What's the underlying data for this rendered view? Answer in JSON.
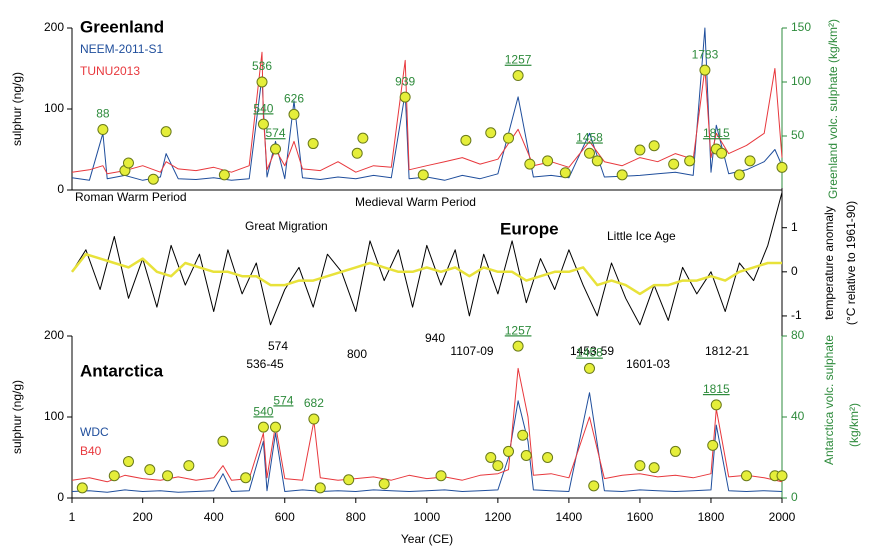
{
  "chart_data": [
    {
      "type": "line",
      "title": "Greenland",
      "ylabel": "sulphur (ng/g)",
      "y2label": [
        "Greenland volc. sulphate (kg/km²)"
      ],
      "ylim": [
        0,
        200
      ],
      "yticks": [
        0,
        100,
        200
      ],
      "y2lim": [
        0,
        150
      ],
      "y2ticks": [
        50,
        100,
        150
      ],
      "y2color": "#2e8b3c",
      "x": [
        1,
        50,
        88,
        100,
        150,
        200,
        250,
        266,
        300,
        350,
        400,
        450,
        500,
        536,
        540,
        550,
        574,
        600,
        626,
        650,
        700,
        750,
        800,
        850,
        900,
        939,
        950,
        1000,
        1050,
        1100,
        1150,
        1200,
        1257,
        1300,
        1350,
        1400,
        1458,
        1500,
        1550,
        1600,
        1650,
        1700,
        1750,
        1783,
        1800,
        1815,
        1850,
        1900,
        1950,
        1980,
        2000
      ],
      "series": [
        {
          "name": "NEEM-2011-S1",
          "color": "#1f4e9c",
          "values": [
            15,
            12,
            70,
            14,
            18,
            12,
            16,
            45,
            14,
            13,
            15,
            12,
            14,
            140,
            100,
            16,
            60,
            14,
            110,
            15,
            13,
            16,
            14,
            18,
            15,
            120,
            14,
            16,
            12,
            18,
            14,
            20,
            115,
            16,
            18,
            15,
            70,
            16,
            17,
            18,
            20,
            22,
            18,
            200,
            22,
            80,
            20,
            25,
            35,
            50,
            30
          ]
        },
        {
          "name": "TUNU2013",
          "color": "#e8383d",
          "values": [
            22,
            25,
            30,
            20,
            24,
            30,
            22,
            35,
            26,
            24,
            28,
            22,
            30,
            170,
            90,
            25,
            50,
            30,
            60,
            26,
            24,
            35,
            22,
            30,
            28,
            160,
            25,
            30,
            35,
            40,
            32,
            38,
            75,
            30,
            35,
            28,
            60,
            35,
            30,
            40,
            35,
            45,
            38,
            150,
            40,
            70,
            45,
            55,
            70,
            150,
            40
          ]
        }
      ],
      "markers": {
        "axis": "y2",
        "color": "#e5ee3a",
        "x": [
          88,
          150,
          160,
          230,
          266,
          430,
          536,
          540,
          574,
          626,
          680,
          804,
          820,
          939,
          990,
          1110,
          1180,
          1230,
          1257,
          1290,
          1340,
          1390,
          1458,
          1480,
          1550,
          1600,
          1640,
          1695,
          1740,
          1783,
          1815,
          1830,
          1880,
          1910,
          2000
        ],
        "values": [
          56,
          18,
          25,
          10,
          54,
          14,
          100,
          61,
          38,
          70,
          43,
          34,
          48,
          86,
          14,
          46,
          53,
          48,
          106,
          24,
          27,
          16,
          34,
          27,
          14,
          37,
          41,
          24,
          27,
          111,
          38,
          34,
          14,
          27,
          21
        ],
        "labels": [
          {
            "text": "88",
            "underline": false
          },
          null,
          null,
          null,
          null,
          null,
          {
            "text": "536",
            "underline": false
          },
          {
            "text": "540",
            "underline": true
          },
          {
            "text": "574",
            "underline": true
          },
          {
            "text": "626",
            "underline": false
          },
          null,
          null,
          null,
          {
            "text": "939",
            "underline": false
          },
          null,
          null,
          null,
          null,
          {
            "text": "1257",
            "underline": true
          },
          null,
          null,
          null,
          {
            "text": "1458",
            "underline": true
          },
          null,
          null,
          null,
          null,
          null,
          null,
          {
            "text": "1783",
            "underline": false
          },
          {
            "text": "1815",
            "underline": true
          },
          null,
          null,
          null,
          null
        ]
      }
    },
    {
      "type": "line",
      "title": "Europe",
      "y2label": [
        "temperature anomaly",
        "(°C relative to 1961-90)"
      ],
      "y2lim": [
        -1.5,
        1.9
      ],
      "y2ticks": [
        -1,
        0,
        1
      ],
      "y2color": "#000000",
      "annotations": [
        "Roman Warm Period",
        "Medieval Warm Period",
        "Great Migration",
        "Little Ice Age",
        "574",
        "536-45",
        "800",
        "940",
        "1107-09",
        "1453-59",
        "1601-03",
        "1812-21"
      ],
      "x": [
        1,
        40,
        80,
        120,
        160,
        200,
        240,
        280,
        320,
        360,
        400,
        440,
        480,
        520,
        560,
        600,
        640,
        680,
        720,
        760,
        800,
        840,
        880,
        920,
        960,
        1000,
        1040,
        1080,
        1120,
        1160,
        1200,
        1240,
        1280,
        1320,
        1360,
        1400,
        1440,
        1480,
        1520,
        1560,
        1600,
        1640,
        1680,
        1720,
        1760,
        1800,
        1840,
        1880,
        1920,
        1960,
        2000
      ],
      "series": [
        {
          "color": "#000000",
          "axis": "y2",
          "values": [
            0.0,
            0.5,
            -0.4,
            0.8,
            -0.6,
            0.3,
            -0.8,
            0.6,
            -0.3,
            0.4,
            -0.9,
            0.5,
            -0.5,
            0.2,
            -1.2,
            -0.4,
            0.1,
            -0.8,
            0.4,
            0.0,
            -0.9,
            0.7,
            -0.2,
            0.5,
            -0.8,
            0.6,
            -0.3,
            0.5,
            -1.0,
            0.4,
            -0.5,
            0.7,
            -0.7,
            0.3,
            -0.4,
            0.5,
            -0.3,
            -1.0,
            0.2,
            -0.6,
            -1.2,
            -0.3,
            -1.1,
            0.1,
            -0.5,
            0.0,
            -0.9,
            0.2,
            -0.2,
            0.6,
            1.8
          ]
        },
        {
          "color": "#e8e23a",
          "axis": "y2",
          "values": [
            0.0,
            0.4,
            0.3,
            0.2,
            0.1,
            0.3,
            0.0,
            -0.1,
            0.2,
            0.1,
            0.0,
            0.0,
            -0.1,
            -0.1,
            -0.3,
            -0.3,
            -0.2,
            -0.2,
            -0.1,
            0.0,
            0.1,
            0.2,
            0.1,
            0.0,
            0.0,
            0.1,
            0.0,
            0.1,
            -0.1,
            0.1,
            0.0,
            0.0,
            -0.2,
            -0.1,
            0.0,
            0.0,
            0.1,
            -0.3,
            -0.2,
            -0.3,
            -0.5,
            -0.3,
            -0.3,
            -0.2,
            -0.2,
            -0.1,
            -0.2,
            0.0,
            0.1,
            0.2,
            0.2
          ]
        }
      ]
    },
    {
      "type": "line",
      "title": "Antarctica",
      "ylabel": "sulphur (ng/g)",
      "y2label": [
        "Antarctica volc. sulphate",
        "(kg/km²)"
      ],
      "xlabel": "Year (CE)",
      "xlim": [
        1,
        2000
      ],
      "xticks": [
        1,
        200,
        400,
        600,
        800,
        1000,
        1200,
        1400,
        1600,
        1800,
        2000
      ],
      "ylim": [
        0,
        200
      ],
      "yticks": [
        0,
        100,
        200
      ],
      "y2lim": [
        0,
        80
      ],
      "y2ticks": [
        0,
        40,
        80
      ],
      "y2color": "#2e8b3c",
      "x": [
        1,
        50,
        100,
        150,
        200,
        250,
        300,
        350,
        400,
        426,
        450,
        500,
        540,
        550,
        574,
        600,
        650,
        682,
        700,
        750,
        800,
        850,
        900,
        950,
        1000,
        1050,
        1100,
        1150,
        1200,
        1230,
        1257,
        1285,
        1300,
        1350,
        1400,
        1458,
        1500,
        1550,
        1600,
        1650,
        1700,
        1750,
        1800,
        1815,
        1850,
        1900,
        1950,
        2000
      ],
      "series": [
        {
          "name": "WDC",
          "color": "#1f4e9c",
          "values": [
            8,
            9,
            7,
            10,
            8,
            9,
            7,
            8,
            9,
            30,
            8,
            9,
            70,
            9,
            80,
            8,
            10,
            9,
            8,
            9,
            8,
            10,
            9,
            8,
            9,
            10,
            8,
            9,
            10,
            50,
            120,
            70,
            10,
            9,
            8,
            130,
            9,
            8,
            10,
            9,
            8,
            9,
            10,
            90,
            9,
            8,
            9,
            8
          ]
        },
        {
          "name": "B40",
          "color": "#e8383d",
          "values": [
            22,
            25,
            20,
            28,
            24,
            22,
            26,
            22,
            25,
            40,
            22,
            24,
            80,
            25,
            90,
            24,
            22,
            95,
            25,
            22,
            24,
            26,
            22,
            28,
            24,
            26,
            22,
            28,
            30,
            35,
            160,
            100,
            28,
            30,
            25,
            100,
            24,
            28,
            30,
            26,
            28,
            25,
            30,
            110,
            26,
            28,
            25,
            20
          ]
        }
      ],
      "markers": {
        "axis": "y2",
        "color": "#e5ee3a",
        "x": [
          30,
          120,
          160,
          220,
          270,
          330,
          426,
          490,
          540,
          574,
          682,
          700,
          780,
          880,
          1040,
          1180,
          1200,
          1230,
          1257,
          1270,
          1280,
          1340,
          1458,
          1470,
          1600,
          1640,
          1700,
          1805,
          1815,
          1900,
          1980,
          2000
        ],
        "values": [
          5,
          11,
          18,
          14,
          11,
          16,
          28,
          10,
          35,
          35,
          39,
          5,
          9,
          7,
          11,
          20,
          16,
          23,
          75,
          31,
          21,
          20,
          64,
          6,
          16,
          15,
          23,
          26,
          46,
          11,
          11,
          11
        ],
        "labels": [
          null,
          null,
          null,
          null,
          null,
          null,
          null,
          null,
          {
            "text": "540",
            "underline": true
          },
          {
            "text": "574",
            "underline": true
          },
          {
            "text": "682",
            "underline": false
          },
          null,
          null,
          null,
          null,
          null,
          null,
          null,
          {
            "text": "1257",
            "underline": true
          },
          null,
          null,
          null,
          {
            "text": "1458",
            "underline": true
          },
          null,
          null,
          null,
          null,
          null,
          {
            "text": "1815",
            "underline": true
          },
          null,
          null,
          null
        ]
      }
    }
  ]
}
